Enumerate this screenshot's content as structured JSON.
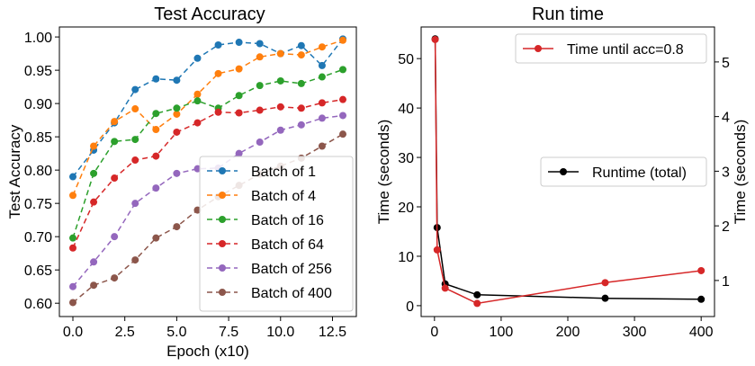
{
  "chart_data": [
    {
      "type": "line",
      "title": "Test Accuracy",
      "xlabel": "Epoch (x10)",
      "ylabel": "Test Accuracy",
      "xlim": [
        -0.65,
        13.65
      ],
      "ylim": [
        0.58,
        1.015
      ],
      "xticks": [
        0.0,
        2.5,
        5.0,
        7.5,
        10.0,
        12.5
      ],
      "xtick_labels": [
        "0.0",
        "2.5",
        "5.0",
        "7.5",
        "10.0",
        "12.5"
      ],
      "yticks": [
        0.6,
        0.65,
        0.7,
        0.75,
        0.8,
        0.85,
        0.9,
        0.95,
        1.0
      ],
      "ytick_labels": [
        "0.60",
        "0.65",
        "0.70",
        "0.75",
        "0.80",
        "0.85",
        "0.90",
        "0.95",
        "1.00"
      ],
      "legend_position": "lower-right",
      "line_style": "dashed",
      "x": [
        0,
        1,
        2,
        3,
        4,
        5,
        6,
        7,
        8,
        9,
        10,
        11,
        12,
        13
      ],
      "series": [
        {
          "name": "Batch of 1",
          "color": "#1f77b4",
          "values": [
            0.79,
            0.83,
            0.871,
            0.921,
            0.937,
            0.935,
            0.968,
            0.988,
            0.992,
            0.99,
            0.975,
            0.987,
            0.957,
            0.997
          ]
        },
        {
          "name": "Batch of 4",
          "color": "#ff7f0e",
          "values": [
            0.762,
            0.836,
            0.873,
            0.892,
            0.861,
            0.884,
            0.914,
            0.945,
            0.952,
            0.97,
            0.975,
            0.973,
            0.985,
            0.995
          ]
        },
        {
          "name": "Batch of 16",
          "color": "#2ca02c",
          "values": [
            0.698,
            0.795,
            0.843,
            0.846,
            0.885,
            0.893,
            0.904,
            0.893,
            0.912,
            0.927,
            0.934,
            0.93,
            0.94,
            0.951
          ]
        },
        {
          "name": "Batch of 64",
          "color": "#d62728",
          "values": [
            0.683,
            0.752,
            0.788,
            0.815,
            0.821,
            0.857,
            0.871,
            0.887,
            0.886,
            0.89,
            0.895,
            0.893,
            0.901,
            0.906
          ]
        },
        {
          "name": "Batch of 256",
          "color": "#9467bd",
          "values": [
            0.625,
            0.662,
            0.7,
            0.75,
            0.773,
            0.795,
            0.802,
            0.803,
            0.825,
            0.842,
            0.86,
            0.868,
            0.878,
            0.882
          ]
        },
        {
          "name": "Batch of 400",
          "color": "#8c564b",
          "values": [
            0.601,
            0.627,
            0.638,
            0.665,
            0.698,
            0.715,
            0.74,
            0.76,
            0.777,
            0.794,
            0.806,
            0.818,
            0.836,
            0.854
          ]
        }
      ]
    },
    {
      "type": "line",
      "title": "Run time",
      "xlabel": "",
      "ylabel": "Time (seconds)",
      "ylabel_right": "Time (seconds)",
      "xlim": [
        -20,
        420
      ],
      "ylim": [
        -2.2,
        56.4
      ],
      "ylim_right": [
        0.34,
        5.64
      ],
      "xticks": [
        0,
        100,
        200,
        300,
        400
      ],
      "xtick_labels": [
        "0",
        "100",
        "200",
        "300",
        "400"
      ],
      "yticks": [
        0,
        10,
        20,
        30,
        40,
        50
      ],
      "ytick_labels": [
        "0",
        "10",
        "20",
        "30",
        "40",
        "50"
      ],
      "yticks_right": [
        1,
        2,
        3,
        4,
        5
      ],
      "ytick_labels_right": [
        "1",
        "2",
        "3",
        "4",
        "5"
      ],
      "series": [
        {
          "name": "Runtime (total)",
          "color": "#000000",
          "axis": "left",
          "legend_position": "center-right",
          "x": [
            1,
            4,
            16,
            64,
            256,
            400
          ],
          "values": [
            54.0,
            15.8,
            4.4,
            2.2,
            1.5,
            1.3
          ]
        },
        {
          "name": "Time until acc=0.8",
          "color": "#d62728",
          "axis": "right",
          "legend_position": "top-right",
          "x": [
            1,
            4,
            16,
            64,
            256,
            400
          ],
          "values": [
            5.41,
            1.56,
            0.86,
            0.58,
            0.96,
            1.18
          ]
        }
      ]
    }
  ]
}
